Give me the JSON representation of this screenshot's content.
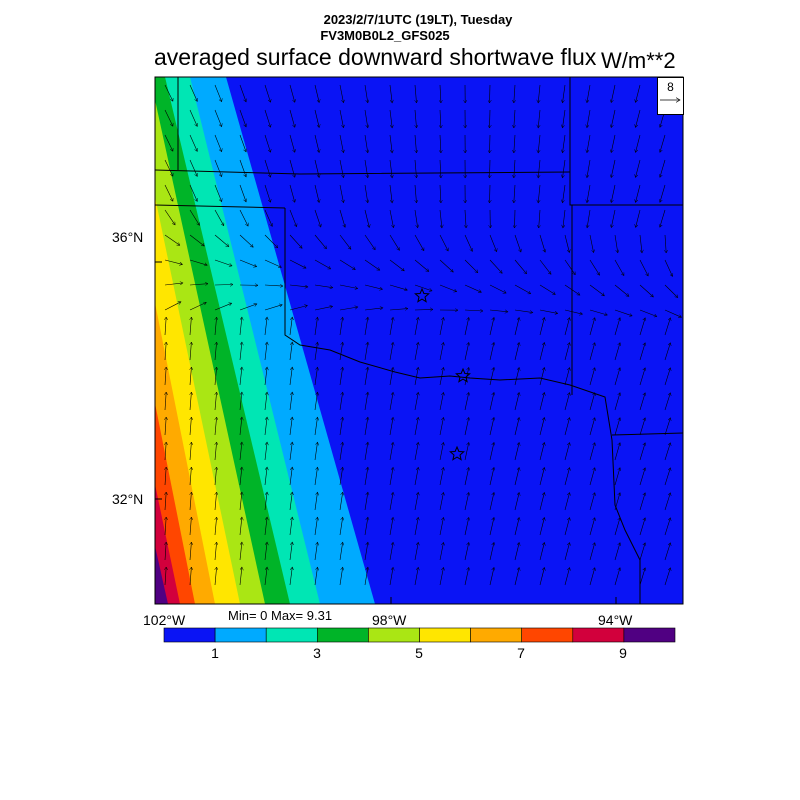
{
  "header": {
    "line1": "2023/2/7/1UTC (19LT), Tuesday",
    "line2": "FV3M0B0L2_GFS025",
    "title": "averaged surface downward shortwave flux",
    "units": "W/m**2"
  },
  "stats": {
    "text": "Min= 0 Max= 9.31"
  },
  "vector_ref": {
    "magnitude": "8"
  },
  "axes": {
    "lat_labels": [
      "36°N",
      "32°N"
    ],
    "lon_labels": [
      "102°W",
      "98°W",
      "94°W"
    ]
  },
  "colorbar": {
    "colors": [
      "#0a14f5",
      "#00aaff",
      "#00e6b4",
      "#00b428",
      "#aae614",
      "#ffe600",
      "#ffaa00",
      "#ff4600",
      "#d2003c",
      "#500082"
    ],
    "labels": [
      "1",
      "3",
      "5",
      "7",
      "9"
    ]
  },
  "markers": {
    "symbol": "star",
    "count": 3
  }
}
